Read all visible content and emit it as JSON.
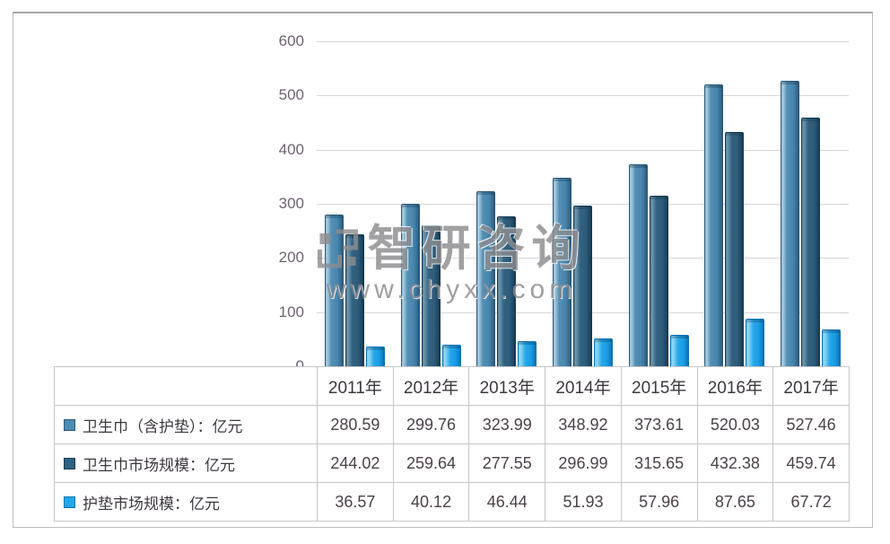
{
  "watermark": {
    "brand": "智研咨询",
    "url": "www.chyxx.com"
  },
  "colors": {
    "series1": "#4e8cb4",
    "series2": "#2f6180",
    "series3": "#22a7e8",
    "gridline": "#d4d6dc",
    "table_border": "#c6c6cb",
    "axis_label": "#6f6272"
  },
  "chart_data": {
    "type": "bar",
    "categories": [
      "2011年",
      "2012年",
      "2013年",
      "2014年",
      "2015年",
      "2016年",
      "2017年"
    ],
    "series": [
      {
        "name": "卫生巾（含护垫）：亿元",
        "values": [
          280.59,
          299.76,
          323.99,
          348.92,
          373.61,
          520.03,
          527.46
        ],
        "color": "#4e8cb4"
      },
      {
        "name": "卫生巾市场规模：亿元",
        "values": [
          244.02,
          259.64,
          277.55,
          296.99,
          315.65,
          432.38,
          459.74
        ],
        "color": "#2f6180"
      },
      {
        "name": "护垫市场规模：亿元",
        "values": [
          36.57,
          40.12,
          46.44,
          51.93,
          57.96,
          87.65,
          67.72
        ],
        "color": "#22a7e8"
      }
    ],
    "title": "",
    "xlabel": "",
    "ylabel": "",
    "ylim": [
      0,
      600
    ],
    "yticks": [
      600,
      500,
      400,
      300,
      200,
      100,
      0
    ],
    "grid": true,
    "legend_position": "table-left-column"
  }
}
